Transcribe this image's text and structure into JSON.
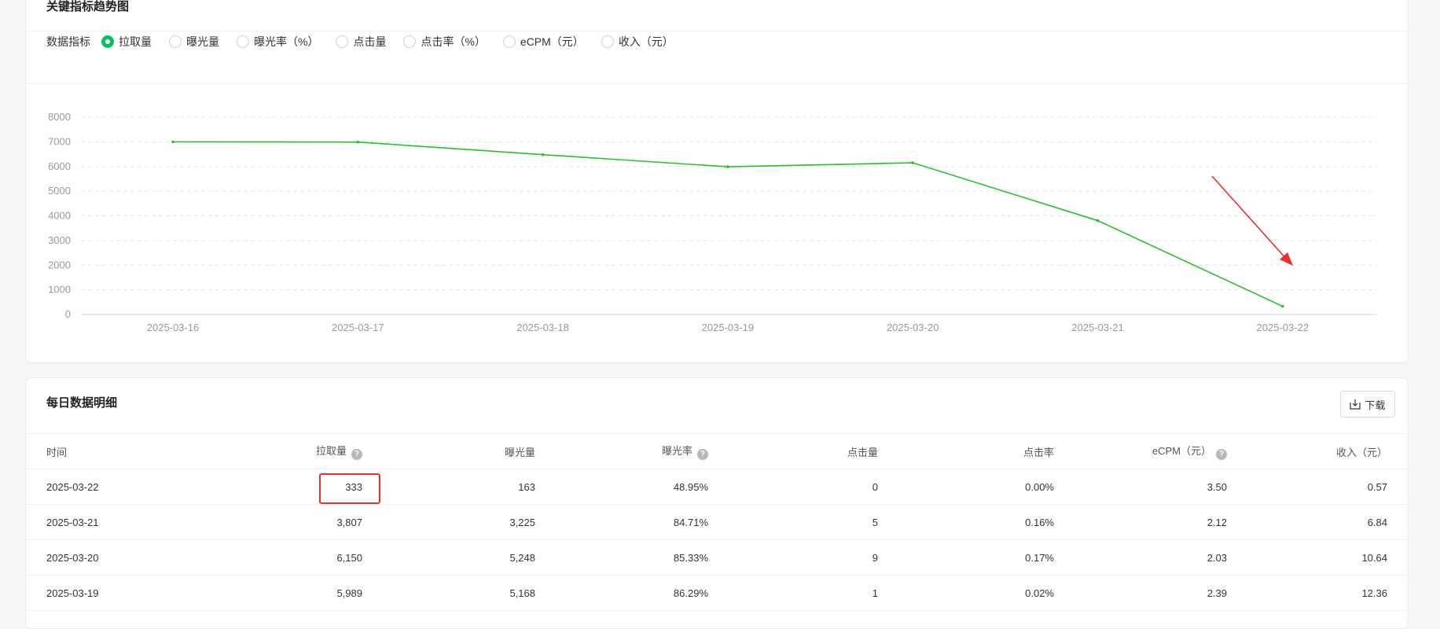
{
  "trend_card": {
    "title": "关键指标趋势图",
    "metric_label": "数据指标",
    "metrics": [
      {
        "label": "拉取量",
        "checked": true
      },
      {
        "label": "曝光量",
        "checked": false
      },
      {
        "label": "曝光率（%）",
        "checked": false
      },
      {
        "label": "点击量",
        "checked": false
      },
      {
        "label": "点击率（%）",
        "checked": false
      },
      {
        "label": "eCPM（元）",
        "checked": false
      },
      {
        "label": "收入（元）",
        "checked": false
      }
    ]
  },
  "chart_data": {
    "type": "line",
    "x": [
      "2025-03-16",
      "2025-03-17",
      "2025-03-18",
      "2025-03-19",
      "2025-03-20",
      "2025-03-21",
      "2025-03-22"
    ],
    "series": [
      {
        "values": [
          7000,
          6990,
          6480,
          5989,
          6150,
          3807,
          333
        ],
        "color": "#28c128"
      }
    ],
    "ylim": [
      0,
      8000
    ],
    "yticks": [
      0,
      1000,
      2000,
      3000,
      4000,
      5000,
      6000,
      7000,
      8000
    ],
    "grid": true,
    "annotation": {
      "type": "red-arrow",
      "color": "#e8312f"
    }
  },
  "detail_card": {
    "title": "每日数据明细",
    "download_label": "下载",
    "columns": [
      {
        "label": "时间",
        "help": false
      },
      {
        "label": "拉取量",
        "help": true
      },
      {
        "label": "曝光量",
        "help": false
      },
      {
        "label": "曝光率",
        "help": true
      },
      {
        "label": "点击量",
        "help": false
      },
      {
        "label": "点击率",
        "help": false
      },
      {
        "label": "eCPM（元）",
        "help": true
      },
      {
        "label": "收入（元）",
        "help": false
      }
    ],
    "rows": [
      [
        "2025-03-22",
        "333",
        "163",
        "48.95%",
        "0",
        "0.00%",
        "3.50",
        "0.57"
      ],
      [
        "2025-03-21",
        "3,807",
        "3,225",
        "84.71%",
        "5",
        "0.16%",
        "2.12",
        "6.84"
      ],
      [
        "2025-03-20",
        "6,150",
        "5,248",
        "85.33%",
        "9",
        "0.17%",
        "2.03",
        "10.64"
      ],
      [
        "2025-03-19",
        "5,989",
        "5,168",
        "86.29%",
        "1",
        "0.02%",
        "2.39",
        "12.36"
      ]
    ],
    "highlight_color": "#e8312f"
  }
}
